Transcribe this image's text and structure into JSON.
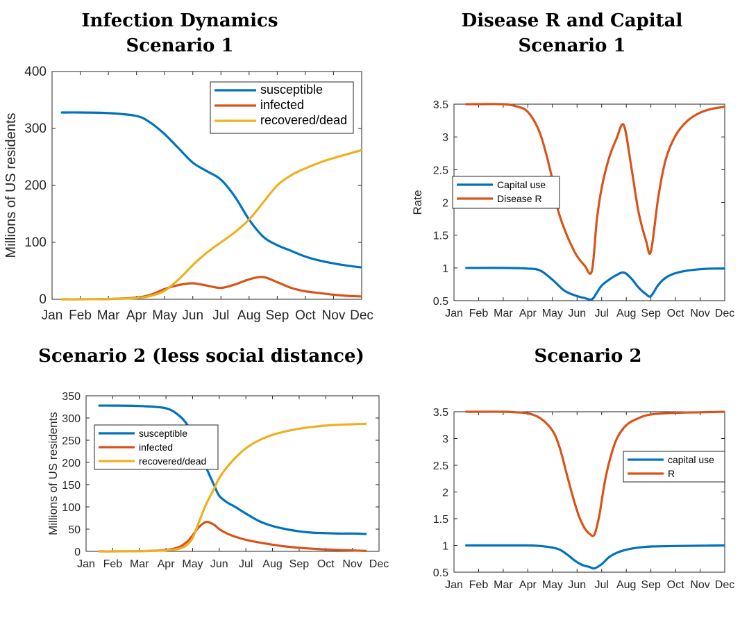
{
  "chart_data": [
    {
      "type": "line",
      "title": [
        "Infection Dynamics",
        "Scenario 1"
      ],
      "ylabel": "Millions of US residents",
      "xlabel": "",
      "x_ticks": [
        "Jan",
        "Feb",
        "Mar",
        "Apr",
        "May",
        "Jun",
        "Jul",
        "Aug",
        "Sep",
        "Oct",
        "Nov",
        "Dec"
      ],
      "xlim": [
        0,
        11
      ],
      "ylim": [
        0,
        400
      ],
      "y_ticks": [
        0,
        100,
        200,
        300,
        400
      ],
      "grid": false,
      "legend_position": "top-right",
      "series": [
        {
          "name": "susceptible",
          "color": "#0072BD",
          "x": [
            0.35,
            1,
            2,
            3,
            3.5,
            4,
            4.5,
            5,
            5.5,
            6,
            6.5,
            7,
            7.5,
            8,
            8.5,
            9,
            9.5,
            10,
            10.5,
            11
          ],
          "y": [
            328,
            328,
            327,
            322,
            310,
            290,
            265,
            240,
            225,
            210,
            180,
            140,
            110,
            95,
            85,
            75,
            68,
            63,
            59,
            56
          ]
        },
        {
          "name": "infected",
          "color": "#D95319",
          "x": [
            0.35,
            1,
            2,
            3,
            3.5,
            4,
            4.5,
            5,
            5.5,
            6,
            6.5,
            7,
            7.5,
            8,
            8.5,
            9,
            9.5,
            10,
            10.5,
            11
          ],
          "y": [
            0,
            0,
            0.5,
            3,
            8,
            18,
            25,
            28,
            24,
            20,
            26,
            35,
            39,
            30,
            20,
            14,
            11,
            8,
            6,
            5
          ]
        },
        {
          "name": "recovered/dead",
          "color": "#EDB120",
          "x": [
            0.35,
            1,
            2,
            3,
            3.5,
            4,
            4.5,
            5,
            5.5,
            6,
            6.5,
            7,
            7.5,
            8,
            8.5,
            9,
            9.5,
            10,
            10.5,
            11
          ],
          "y": [
            0,
            0,
            0.5,
            2,
            6,
            15,
            35,
            60,
            82,
            100,
            118,
            140,
            170,
            200,
            218,
            230,
            240,
            248,
            255,
            262
          ]
        }
      ]
    },
    {
      "type": "line",
      "title": [
        "Disease R and Capital",
        "Scenario 1"
      ],
      "ylabel": "Rate",
      "xlabel": "",
      "x_ticks": [
        "Jan",
        "Feb",
        "Mar",
        "Apr",
        "May",
        "Jun",
        "Jul",
        "Aug",
        "Sep",
        "Oct",
        "Nov",
        "Dec"
      ],
      "xlim": [
        0,
        11
      ],
      "ylim": [
        0.5,
        3.5
      ],
      "y_ticks": [
        0.5,
        1,
        1.5,
        2,
        2.5,
        3,
        3.5
      ],
      "y_tick_labels": [
        "0.5",
        "1",
        "1.5",
        "2",
        "2.5",
        "3",
        "3.5"
      ],
      "grid": false,
      "legend_position": "middle-left",
      "series": [
        {
          "name": "Capital use",
          "color": "#0072BD",
          "x": [
            0.5,
            1,
            2,
            3,
            3.5,
            4,
            4.5,
            5,
            5.3,
            5.6,
            5.8,
            6,
            6.3,
            6.6,
            6.9,
            7.2,
            7.5,
            7.8,
            8,
            8.3,
            8.6,
            9,
            9.5,
            10,
            10.5,
            11
          ],
          "y": [
            1,
            1,
            1,
            0.99,
            0.96,
            0.82,
            0.65,
            0.57,
            0.54,
            0.52,
            0.62,
            0.73,
            0.82,
            0.89,
            0.93,
            0.84,
            0.7,
            0.6,
            0.57,
            0.74,
            0.85,
            0.92,
            0.96,
            0.98,
            0.99,
            0.99
          ]
        },
        {
          "name": "Disease R",
          "color": "#D95319",
          "x": [
            0.5,
            1,
            2,
            2.5,
            3,
            3.5,
            4,
            4.2,
            4.5,
            4.8,
            5,
            5.3,
            5.6,
            5.8,
            6,
            6.3,
            6.6,
            6.9,
            7.2,
            7.5,
            7.8,
            8,
            8.3,
            8.6,
            9,
            9.5,
            10,
            10.5,
            11
          ],
          "y": [
            3.5,
            3.5,
            3.5,
            3.47,
            3.38,
            3.05,
            2.35,
            1.92,
            1.58,
            1.32,
            1.18,
            1.04,
            0.95,
            1.72,
            2.22,
            2.68,
            2.97,
            3.18,
            2.55,
            1.85,
            1.42,
            1.25,
            2.08,
            2.65,
            3.02,
            3.25,
            3.37,
            3.43,
            3.46
          ]
        }
      ]
    },
    {
      "type": "line",
      "title": [
        "Scenario 2 (less social distance)"
      ],
      "ylabel": "Millions of US residents",
      "xlabel": "",
      "x_ticks": [
        "Jan",
        "Feb",
        "Mar",
        "Apr",
        "May",
        "Jun",
        "Jul",
        "Aug",
        "Sep",
        "Oct",
        "Nov",
        "Dec"
      ],
      "xlim": [
        0,
        11
      ],
      "ylim": [
        0,
        350
      ],
      "y_ticks": [
        0,
        50,
        100,
        150,
        200,
        250,
        300,
        350
      ],
      "grid": false,
      "legend_position": "top-left",
      "series": [
        {
          "name": "susceptible",
          "color": "#0072BD",
          "x": [
            0.5,
            1,
            2,
            3,
            3.5,
            3.8,
            4,
            4.2,
            4.5,
            4.8,
            5,
            5.3,
            5.6,
            6,
            6.5,
            7,
            7.5,
            8,
            8.5,
            9,
            9.5,
            10,
            10.5
          ],
          "y": [
            328,
            328,
            327,
            322,
            305,
            285,
            265,
            235,
            190,
            150,
            125,
            110,
            100,
            85,
            68,
            57,
            50,
            45,
            42,
            41,
            40,
            40,
            39
          ]
        },
        {
          "name": "infected",
          "color": "#D95319",
          "x": [
            0.5,
            1,
            2,
            3,
            3.5,
            3.8,
            4,
            4.2,
            4.5,
            4.8,
            5,
            5.3,
            5.6,
            6,
            6.5,
            7,
            7.5,
            8,
            8.5,
            9,
            9.5,
            10,
            10.5
          ],
          "y": [
            0,
            0,
            0.5,
            3,
            10,
            22,
            36,
            52,
            66,
            60,
            50,
            40,
            33,
            26,
            20,
            15,
            11,
            8,
            6,
            4,
            3,
            2,
            1
          ]
        },
        {
          "name": "recovered/dead",
          "color": "#EDB120",
          "x": [
            0.5,
            1,
            2,
            3,
            3.5,
            3.8,
            4,
            4.2,
            4.5,
            4.8,
            5,
            5.3,
            5.6,
            6,
            6.5,
            7,
            7.5,
            8,
            8.5,
            9,
            9.5,
            10,
            10.5
          ],
          "y": [
            0,
            0,
            0.5,
            2,
            6,
            15,
            30,
            60,
            105,
            140,
            165,
            190,
            210,
            232,
            250,
            262,
            270,
            276,
            280,
            283,
            285,
            286,
            287
          ]
        }
      ]
    },
    {
      "type": "line",
      "title": [
        "Scenario 2"
      ],
      "ylabel": "",
      "xlabel": "",
      "x_ticks": [
        "Jan",
        "Feb",
        "Mar",
        "Apr",
        "May",
        "Jun",
        "Jul",
        "Aug",
        "Sep",
        "Oct",
        "Nov",
        "Dec"
      ],
      "xlim": [
        0,
        11
      ],
      "ylim": [
        0.5,
        3.5
      ],
      "y_ticks": [
        0.5,
        1,
        1.5,
        2,
        2.5,
        3,
        3.5
      ],
      "y_tick_labels": [
        "0.5",
        "1",
        "1.5",
        "2",
        "2.5",
        "3",
        "3.5"
      ],
      "grid": false,
      "legend_position": "middle-right",
      "series": [
        {
          "name": "capital use",
          "color": "#0072BD",
          "x": [
            0.5,
            1,
            2,
            3,
            3.5,
            4,
            4.3,
            4.6,
            4.9,
            5.1,
            5.3,
            5.5,
            5.7,
            6,
            6.3,
            6.6,
            7,
            7.5,
            8,
            9,
            10,
            11
          ],
          "y": [
            1,
            1,
            1,
            1,
            0.99,
            0.96,
            0.92,
            0.83,
            0.72,
            0.66,
            0.62,
            0.6,
            0.57,
            0.65,
            0.78,
            0.86,
            0.92,
            0.96,
            0.98,
            0.99,
            0.995,
            1
          ]
        },
        {
          "name": "R",
          "color": "#D95319",
          "x": [
            0.5,
            1,
            2,
            2.5,
            3,
            3.5,
            4,
            4.3,
            4.6,
            4.9,
            5.1,
            5.3,
            5.5,
            5.7,
            5.9,
            6.1,
            6.3,
            6.6,
            7,
            7.5,
            8,
            9,
            10,
            11
          ],
          "y": [
            3.5,
            3.5,
            3.5,
            3.49,
            3.47,
            3.38,
            3.15,
            2.82,
            2.3,
            1.8,
            1.52,
            1.33,
            1.22,
            1.2,
            1.55,
            2.12,
            2.55,
            2.98,
            3.25,
            3.38,
            3.45,
            3.48,
            3.49,
            3.5
          ]
        }
      ]
    }
  ]
}
